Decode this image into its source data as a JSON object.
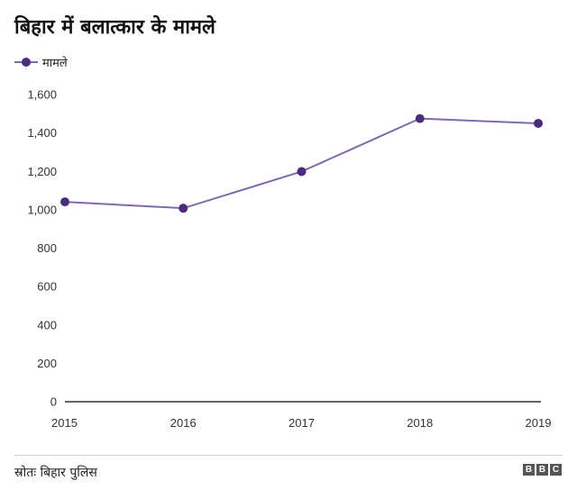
{
  "title": "बिहार में बलात्कार के मामले",
  "source": "स्रोतः बिहार पुलिस",
  "logo": [
    "B",
    "B",
    "C"
  ],
  "colors": {
    "series": "#4b2c7a",
    "line": "#7e6aa9",
    "axis": "#333333"
  },
  "chart_data": {
    "type": "line",
    "title": "बिहार में बलात्कार के मामले",
    "xlabel": "",
    "ylabel": "",
    "x": [
      "2015",
      "2016",
      "2017",
      "2018",
      "2019"
    ],
    "series": [
      {
        "name": "मामले",
        "values": [
          1041,
          1008,
          1199,
          1475,
          1450
        ]
      }
    ],
    "ylim": [
      0,
      1600
    ],
    "yticks": [
      {
        "value": 0,
        "label": "0"
      },
      {
        "value": 200,
        "label": "200"
      },
      {
        "value": 400,
        "label": "400"
      },
      {
        "value": 600,
        "label": "600"
      },
      {
        "value": 800,
        "label": "800"
      },
      {
        "value": 1000,
        "label": "1,000"
      },
      {
        "value": 1200,
        "label": "1,200"
      },
      {
        "value": 1400,
        "label": "1,400"
      },
      {
        "value": 1600,
        "label": "1,600"
      }
    ],
    "grid": false,
    "legend": "top-left"
  }
}
